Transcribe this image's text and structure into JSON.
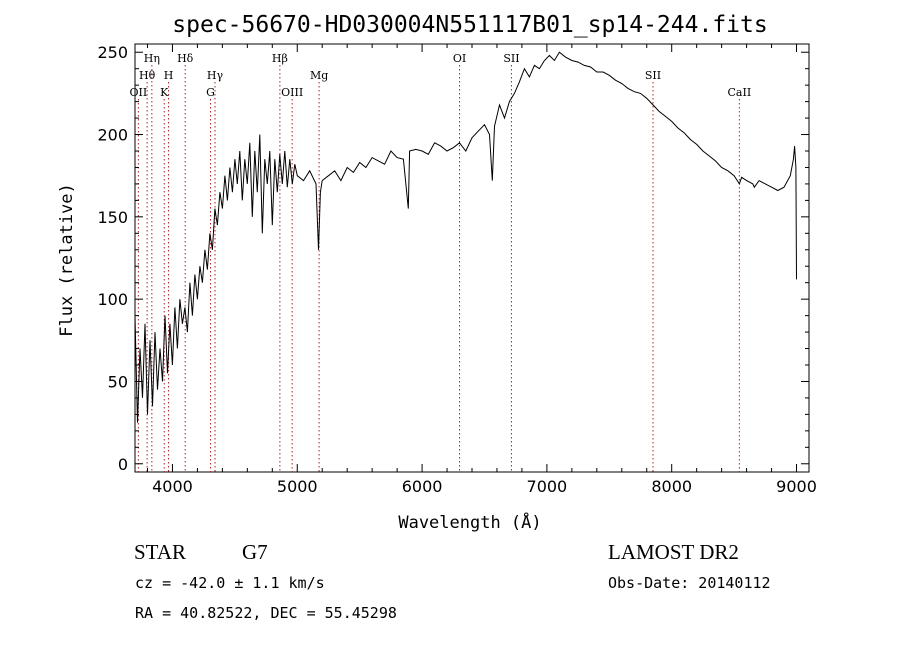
{
  "chart_data": {
    "type": "line",
    "title": "spec-56670-HD030004N551117B01_sp14-244.fits",
    "xlabel": "Wavelength (Å)",
    "ylabel": "Flux (relative)",
    "xlim": [
      3700,
      9100
    ],
    "ylim": [
      -5,
      255
    ],
    "xticks": [
      4000,
      5000,
      6000,
      7000,
      8000,
      9000
    ],
    "yticks": [
      0,
      50,
      100,
      150,
      200,
      250
    ],
    "grid": false,
    "line_color": "#000000",
    "marker_color": "#b22222",
    "series": [
      {
        "x": [
          3700,
          3720,
          3740,
          3760,
          3780,
          3800,
          3820,
          3840,
          3860,
          3880,
          3900,
          3920,
          3940,
          3960,
          3980,
          4000,
          4020,
          4040,
          4060,
          4080,
          4100,
          4120,
          4140,
          4160,
          4180,
          4200,
          4220,
          4240,
          4260,
          4280,
          4300,
          4320,
          4340,
          4360,
          4380,
          4400,
          4420,
          4440,
          4460,
          4480,
          4500,
          4520,
          4540,
          4560,
          4580,
          4600,
          4620,
          4640,
          4660,
          4680,
          4700,
          4720,
          4740,
          4760,
          4780,
          4800,
          4820,
          4840,
          4860,
          4880,
          4900,
          4920,
          4940,
          4960,
          4980,
          5000,
          5050,
          5100,
          5150,
          5170,
          5185,
          5200,
          5250,
          5300,
          5350,
          5400,
          5450,
          5500,
          5550,
          5600,
          5650,
          5700,
          5750,
          5800,
          5850,
          5890,
          5900,
          5950,
          6000,
          6050,
          6100,
          6150,
          6200,
          6250,
          6300,
          6350,
          6400,
          6450,
          6500,
          6540,
          6563,
          6580,
          6620,
          6660,
          6700,
          6740,
          6780,
          6820,
          6860,
          6900,
          6940,
          6980,
          7020,
          7060,
          7100,
          7150,
          7200,
          7250,
          7300,
          7350,
          7400,
          7450,
          7500,
          7550,
          7600,
          7650,
          7700,
          7750,
          7800,
          7850,
          7900,
          7950,
          8000,
          8050,
          8100,
          8150,
          8200,
          8250,
          8300,
          8350,
          8400,
          8450,
          8500,
          8542,
          8560,
          8600,
          8650,
          8662,
          8700,
          8750,
          8800,
          8850,
          8900,
          8950,
          8975,
          8985,
          8995,
          9000
        ],
        "y": [
          90,
          25,
          70,
          40,
          85,
          30,
          75,
          35,
          80,
          45,
          70,
          50,
          90,
          55,
          85,
          60,
          95,
          70,
          100,
          85,
          95,
          80,
          110,
          90,
          115,
          100,
          120,
          110,
          130,
          118,
          140,
          130,
          155,
          145,
          165,
          155,
          175,
          160,
          180,
          165,
          185,
          170,
          190,
          160,
          185,
          170,
          195,
          150,
          190,
          165,
          200,
          140,
          185,
          170,
          190,
          145,
          185,
          165,
          188,
          170,
          190,
          168,
          185,
          170,
          182,
          175,
          172,
          178,
          170,
          130,
          165,
          172,
          175,
          178,
          172,
          180,
          177,
          183,
          180,
          186,
          184,
          182,
          190,
          186,
          185,
          155,
          190,
          191,
          190,
          188,
          195,
          193,
          190,
          192,
          195,
          190,
          198,
          202,
          206,
          200,
          172,
          205,
          218,
          210,
          220,
          225,
          232,
          240,
          235,
          242,
          240,
          245,
          248,
          245,
          250,
          247,
          245,
          244,
          242,
          241,
          238,
          238,
          236,
          233,
          231,
          228,
          226,
          225,
          222,
          218,
          214,
          211,
          208,
          204,
          201,
          197,
          194,
          190,
          187,
          184,
          180,
          178,
          175,
          170,
          174,
          172,
          170,
          168,
          172,
          170,
          168,
          166,
          168,
          175,
          185,
          193,
          180,
          112
        ]
      }
    ],
    "spectral_lines": [
      {
        "label": "OII",
        "x": 3727,
        "tier": 3
      },
      {
        "label": "Hθ",
        "x": 3797,
        "tier": 2
      },
      {
        "label": "Hη",
        "x": 3835,
        "tier": 1
      },
      {
        "label": "K",
        "x": 3934,
        "tier": 3
      },
      {
        "label": "H",
        "x": 3969,
        "tier": 2
      },
      {
        "label": "Hδ",
        "x": 4102,
        "tier": 1
      },
      {
        "label": "G",
        "x": 4305,
        "tier": 3
      },
      {
        "label": "Hγ",
        "x": 4341,
        "tier": 2
      },
      {
        "label": "Hβ",
        "x": 4861,
        "tier": 1
      },
      {
        "label": "OIII",
        "x": 4959,
        "tier": 3
      },
      {
        "label": "Mg",
        "x": 5175,
        "tier": 2
      },
      {
        "label": "OI",
        "x": 6300,
        "tier": 1
      },
      {
        "label": "SII",
        "x": 6716,
        "tier": 1
      },
      {
        "label": "SII",
        "x": 7850,
        "tier": 2
      },
      {
        "label": "CaII",
        "x": 8542,
        "tier": 3
      }
    ]
  },
  "info": {
    "object_type": "STAR",
    "subclass": "G7",
    "survey": "LAMOST DR2",
    "redshift": "cz = -42.0 ± 1.1 km/s",
    "obs_date": "Obs-Date: 20140112",
    "coords": "RA =  40.82522, DEC =  55.45298"
  }
}
